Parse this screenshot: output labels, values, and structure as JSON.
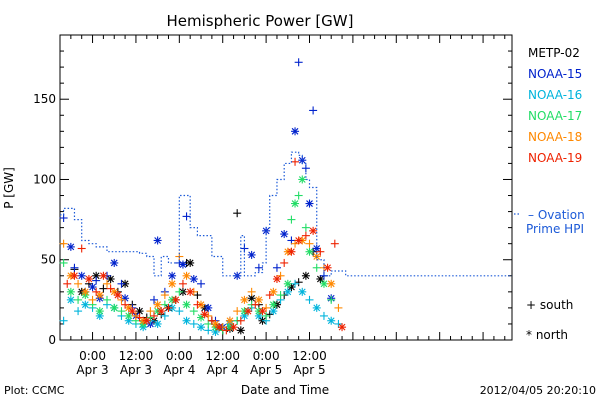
{
  "chart_data": {
    "type": "scatter",
    "title": "Hemispheric Power [GW]",
    "ylabel": "P [GW]",
    "xlabel": "Date and Time",
    "ylim": [
      0,
      190
    ],
    "xlim": [
      -9,
      116
    ],
    "x_unit": "hours from 2012-04-03 00:00 UT",
    "yticks": [
      0,
      50,
      100,
      150
    ],
    "xticks": [
      {
        "x": 0,
        "label1": "0:00",
        "label2": "Apr 3"
      },
      {
        "x": 12,
        "label1": "12:00",
        "label2": "Apr 3"
      },
      {
        "x": 24,
        "label1": "0:00",
        "label2": "Apr 4"
      },
      {
        "x": 36,
        "label1": "12:00",
        "label2": "Apr 4"
      },
      {
        "x": 48,
        "label1": "0:00",
        "label2": "Apr 5"
      },
      {
        "x": 60,
        "label1": "12:00",
        "label2": "Apr 5"
      }
    ],
    "grid": false,
    "legend_position": "right",
    "series": [
      {
        "name": "METP-02",
        "color": "#000000",
        "points": [
          [
            -5,
            44
          ],
          [
            -3,
            30
          ],
          [
            -1,
            35
          ],
          [
            1,
            40
          ],
          [
            3,
            32
          ],
          [
            5,
            38
          ],
          [
            7,
            30
          ],
          [
            9,
            35
          ],
          [
            11,
            22
          ],
          [
            13,
            18
          ],
          [
            15,
            14
          ],
          [
            17,
            12
          ],
          [
            19,
            16
          ],
          [
            21,
            20
          ],
          [
            23,
            25
          ],
          [
            25,
            30
          ],
          [
            26,
            48
          ],
          [
            27,
            48
          ],
          [
            29,
            28
          ],
          [
            31,
            20
          ],
          [
            33,
            12
          ],
          [
            35,
            8
          ],
          [
            36,
            6
          ],
          [
            38,
            7
          ],
          [
            40,
            79
          ],
          [
            41,
            6
          ],
          [
            43,
            18
          ],
          [
            44,
            26
          ],
          [
            46,
            22
          ],
          [
            47,
            12
          ],
          [
            49,
            16
          ],
          [
            51,
            22
          ],
          [
            53,
            28
          ],
          [
            55,
            33
          ],
          [
            57,
            36
          ],
          [
            59,
            40
          ],
          [
            61,
            55
          ],
          [
            63,
            38
          ]
        ]
      },
      {
        "name": "NOAA-15",
        "color": "#0022cc",
        "points": [
          [
            -8,
            76
          ],
          [
            -6,
            58
          ],
          [
            -5,
            45
          ],
          [
            -3,
            40
          ],
          [
            -2,
            30
          ],
          [
            0,
            33
          ],
          [
            1,
            37
          ],
          [
            2,
            26
          ],
          [
            4,
            40
          ],
          [
            6,
            48
          ],
          [
            8,
            35
          ],
          [
            9,
            26
          ],
          [
            11,
            20
          ],
          [
            12,
            15
          ],
          [
            14,
            12
          ],
          [
            16,
            10
          ],
          [
            17,
            25
          ],
          [
            18,
            62
          ],
          [
            20,
            30
          ],
          [
            22,
            40
          ],
          [
            24,
            48
          ],
          [
            25,
            47
          ],
          [
            26,
            77
          ],
          [
            28,
            38
          ],
          [
            30,
            35
          ],
          [
            32,
            20
          ],
          [
            34,
            12
          ],
          [
            36,
            8
          ],
          [
            38,
            12
          ],
          [
            40,
            40
          ],
          [
            42,
            57
          ],
          [
            44,
            53
          ],
          [
            46,
            45
          ],
          [
            48,
            68
          ],
          [
            51,
            45
          ],
          [
            53,
            66
          ],
          [
            55,
            62
          ],
          [
            56,
            130
          ],
          [
            57,
            173
          ],
          [
            58,
            112
          ],
          [
            59,
            107
          ],
          [
            60,
            85
          ],
          [
            61,
            143
          ],
          [
            62,
            57
          ],
          [
            64,
            40
          ],
          [
            66,
            26
          ]
        ]
      },
      {
        "name": "NOAA-16",
        "color": "#00b4dc",
        "points": [
          [
            -8,
            12
          ],
          [
            -6,
            25
          ],
          [
            -4,
            18
          ],
          [
            -2,
            22
          ],
          [
            0,
            20
          ],
          [
            2,
            15
          ],
          [
            4,
            22
          ],
          [
            6,
            20
          ],
          [
            8,
            15
          ],
          [
            10,
            12
          ],
          [
            12,
            10
          ],
          [
            14,
            8
          ],
          [
            16,
            12
          ],
          [
            18,
            10
          ],
          [
            20,
            15
          ],
          [
            22,
            20
          ],
          [
            24,
            18
          ],
          [
            26,
            12
          ],
          [
            28,
            10
          ],
          [
            30,
            8
          ],
          [
            32,
            6
          ],
          [
            34,
            5
          ],
          [
            36,
            8
          ],
          [
            38,
            10
          ],
          [
            40,
            12
          ],
          [
            42,
            15
          ],
          [
            44,
            20
          ],
          [
            46,
            15
          ],
          [
            48,
            12
          ],
          [
            50,
            18
          ],
          [
            52,
            25
          ],
          [
            54,
            30
          ],
          [
            56,
            35
          ],
          [
            58,
            30
          ],
          [
            60,
            25
          ],
          [
            62,
            20
          ],
          [
            64,
            15
          ],
          [
            66,
            12
          ],
          [
            68,
            10
          ]
        ]
      },
      {
        "name": "NOAA-17",
        "color": "#22dd66",
        "points": [
          [
            -8,
            48
          ],
          [
            -6,
            30
          ],
          [
            -4,
            25
          ],
          [
            -2,
            28
          ],
          [
            0,
            22
          ],
          [
            2,
            18
          ],
          [
            4,
            25
          ],
          [
            6,
            20
          ],
          [
            8,
            18
          ],
          [
            10,
            15
          ],
          [
            12,
            12
          ],
          [
            14,
            10
          ],
          [
            16,
            14
          ],
          [
            18,
            18
          ],
          [
            20,
            22
          ],
          [
            22,
            25
          ],
          [
            24,
            30
          ],
          [
            26,
            22
          ],
          [
            28,
            18
          ],
          [
            30,
            14
          ],
          [
            32,
            10
          ],
          [
            34,
            8
          ],
          [
            36,
            6
          ],
          [
            38,
            8
          ],
          [
            40,
            12
          ],
          [
            42,
            18
          ],
          [
            44,
            22
          ],
          [
            46,
            18
          ],
          [
            48,
            15
          ],
          [
            50,
            22
          ],
          [
            52,
            28
          ],
          [
            54,
            35
          ],
          [
            55,
            75
          ],
          [
            56,
            85
          ],
          [
            57,
            90
          ],
          [
            58,
            100
          ],
          [
            59,
            70
          ],
          [
            60,
            55
          ],
          [
            62,
            45
          ],
          [
            64,
            35
          ],
          [
            66,
            25
          ]
        ]
      },
      {
        "name": "NOAA-18",
        "color": "#ff8800",
        "points": [
          [
            -8,
            60
          ],
          [
            -6,
            40
          ],
          [
            -4,
            35
          ],
          [
            -2,
            30
          ],
          [
            0,
            25
          ],
          [
            2,
            28
          ],
          [
            4,
            35
          ],
          [
            6,
            30
          ],
          [
            8,
            25
          ],
          [
            10,
            20
          ],
          [
            12,
            15
          ],
          [
            14,
            12
          ],
          [
            16,
            18
          ],
          [
            18,
            22
          ],
          [
            20,
            28
          ],
          [
            22,
            35
          ],
          [
            24,
            52
          ],
          [
            26,
            40
          ],
          [
            28,
            30
          ],
          [
            30,
            22
          ],
          [
            32,
            15
          ],
          [
            34,
            10
          ],
          [
            36,
            8
          ],
          [
            38,
            12
          ],
          [
            40,
            18
          ],
          [
            42,
            25
          ],
          [
            44,
            30
          ],
          [
            46,
            25
          ],
          [
            48,
            20
          ],
          [
            50,
            30
          ],
          [
            52,
            40
          ],
          [
            54,
            55
          ],
          [
            56,
            60
          ],
          [
            58,
            62
          ],
          [
            60,
            60
          ],
          [
            62,
            52
          ],
          [
            64,
            45
          ],
          [
            66,
            35
          ],
          [
            68,
            20
          ]
        ]
      },
      {
        "name": "NOAA-19",
        "color": "#ee2200",
        "points": [
          [
            -7,
            35
          ],
          [
            -5,
            40
          ],
          [
            -3,
            57
          ],
          [
            -1,
            38
          ],
          [
            1,
            30
          ],
          [
            3,
            40
          ],
          [
            5,
            32
          ],
          [
            7,
            28
          ],
          [
            9,
            22
          ],
          [
            11,
            18
          ],
          [
            13,
            14
          ],
          [
            15,
            12
          ],
          [
            17,
            15
          ],
          [
            19,
            18
          ],
          [
            21,
            20
          ],
          [
            23,
            25
          ],
          [
            25,
            35
          ],
          [
            27,
            30
          ],
          [
            29,
            22
          ],
          [
            31,
            16
          ],
          [
            33,
            12
          ],
          [
            35,
            8
          ],
          [
            37,
            6
          ],
          [
            39,
            8
          ],
          [
            41,
            12
          ],
          [
            43,
            18
          ],
          [
            45,
            22
          ],
          [
            47,
            18
          ],
          [
            49,
            28
          ],
          [
            51,
            38
          ],
          [
            53,
            48
          ],
          [
            55,
            55
          ],
          [
            56,
            111
          ],
          [
            57,
            62
          ],
          [
            59,
            65
          ],
          [
            61,
            68
          ],
          [
            63,
            55
          ],
          [
            65,
            45
          ],
          [
            67,
            60
          ],
          [
            69,
            8
          ]
        ]
      },
      {
        "name": "Ovation Prime HPI",
        "color": "#1c5ad8",
        "style": "dotted-step",
        "points": [
          [
            -9,
            78
          ],
          [
            -8,
            82
          ],
          [
            -5,
            75
          ],
          [
            -3,
            62
          ],
          [
            -1,
            60
          ],
          [
            1,
            58
          ],
          [
            4,
            55
          ],
          [
            7,
            55
          ],
          [
            10,
            55
          ],
          [
            13,
            54
          ],
          [
            15,
            52
          ],
          [
            17,
            40
          ],
          [
            19,
            52
          ],
          [
            21,
            48
          ],
          [
            23,
            48
          ],
          [
            24,
            90
          ],
          [
            27,
            70
          ],
          [
            29,
            65
          ],
          [
            32,
            65
          ],
          [
            33,
            52
          ],
          [
            36,
            40
          ],
          [
            39,
            40
          ],
          [
            41,
            65
          ],
          [
            42,
            40
          ],
          [
            45,
            42
          ],
          [
            47,
            48
          ],
          [
            48,
            70
          ],
          [
            49,
            90
          ],
          [
            51,
            100
          ],
          [
            53,
            110
          ],
          [
            55,
            117
          ],
          [
            57,
            115
          ],
          [
            58,
            110
          ],
          [
            59,
            100
          ],
          [
            60,
            95
          ],
          [
            62,
            50
          ],
          [
            64,
            40
          ],
          [
            66,
            43
          ],
          [
            68,
            43
          ],
          [
            70,
            40
          ]
        ]
      }
    ],
    "marker_legend": [
      {
        "symbol": "+",
        "label": "south"
      },
      {
        "symbol": "*",
        "label": "north"
      }
    ]
  },
  "footer": {
    "left": "Plot: CCMC",
    "right": "2012/04/05 20:20:10"
  }
}
